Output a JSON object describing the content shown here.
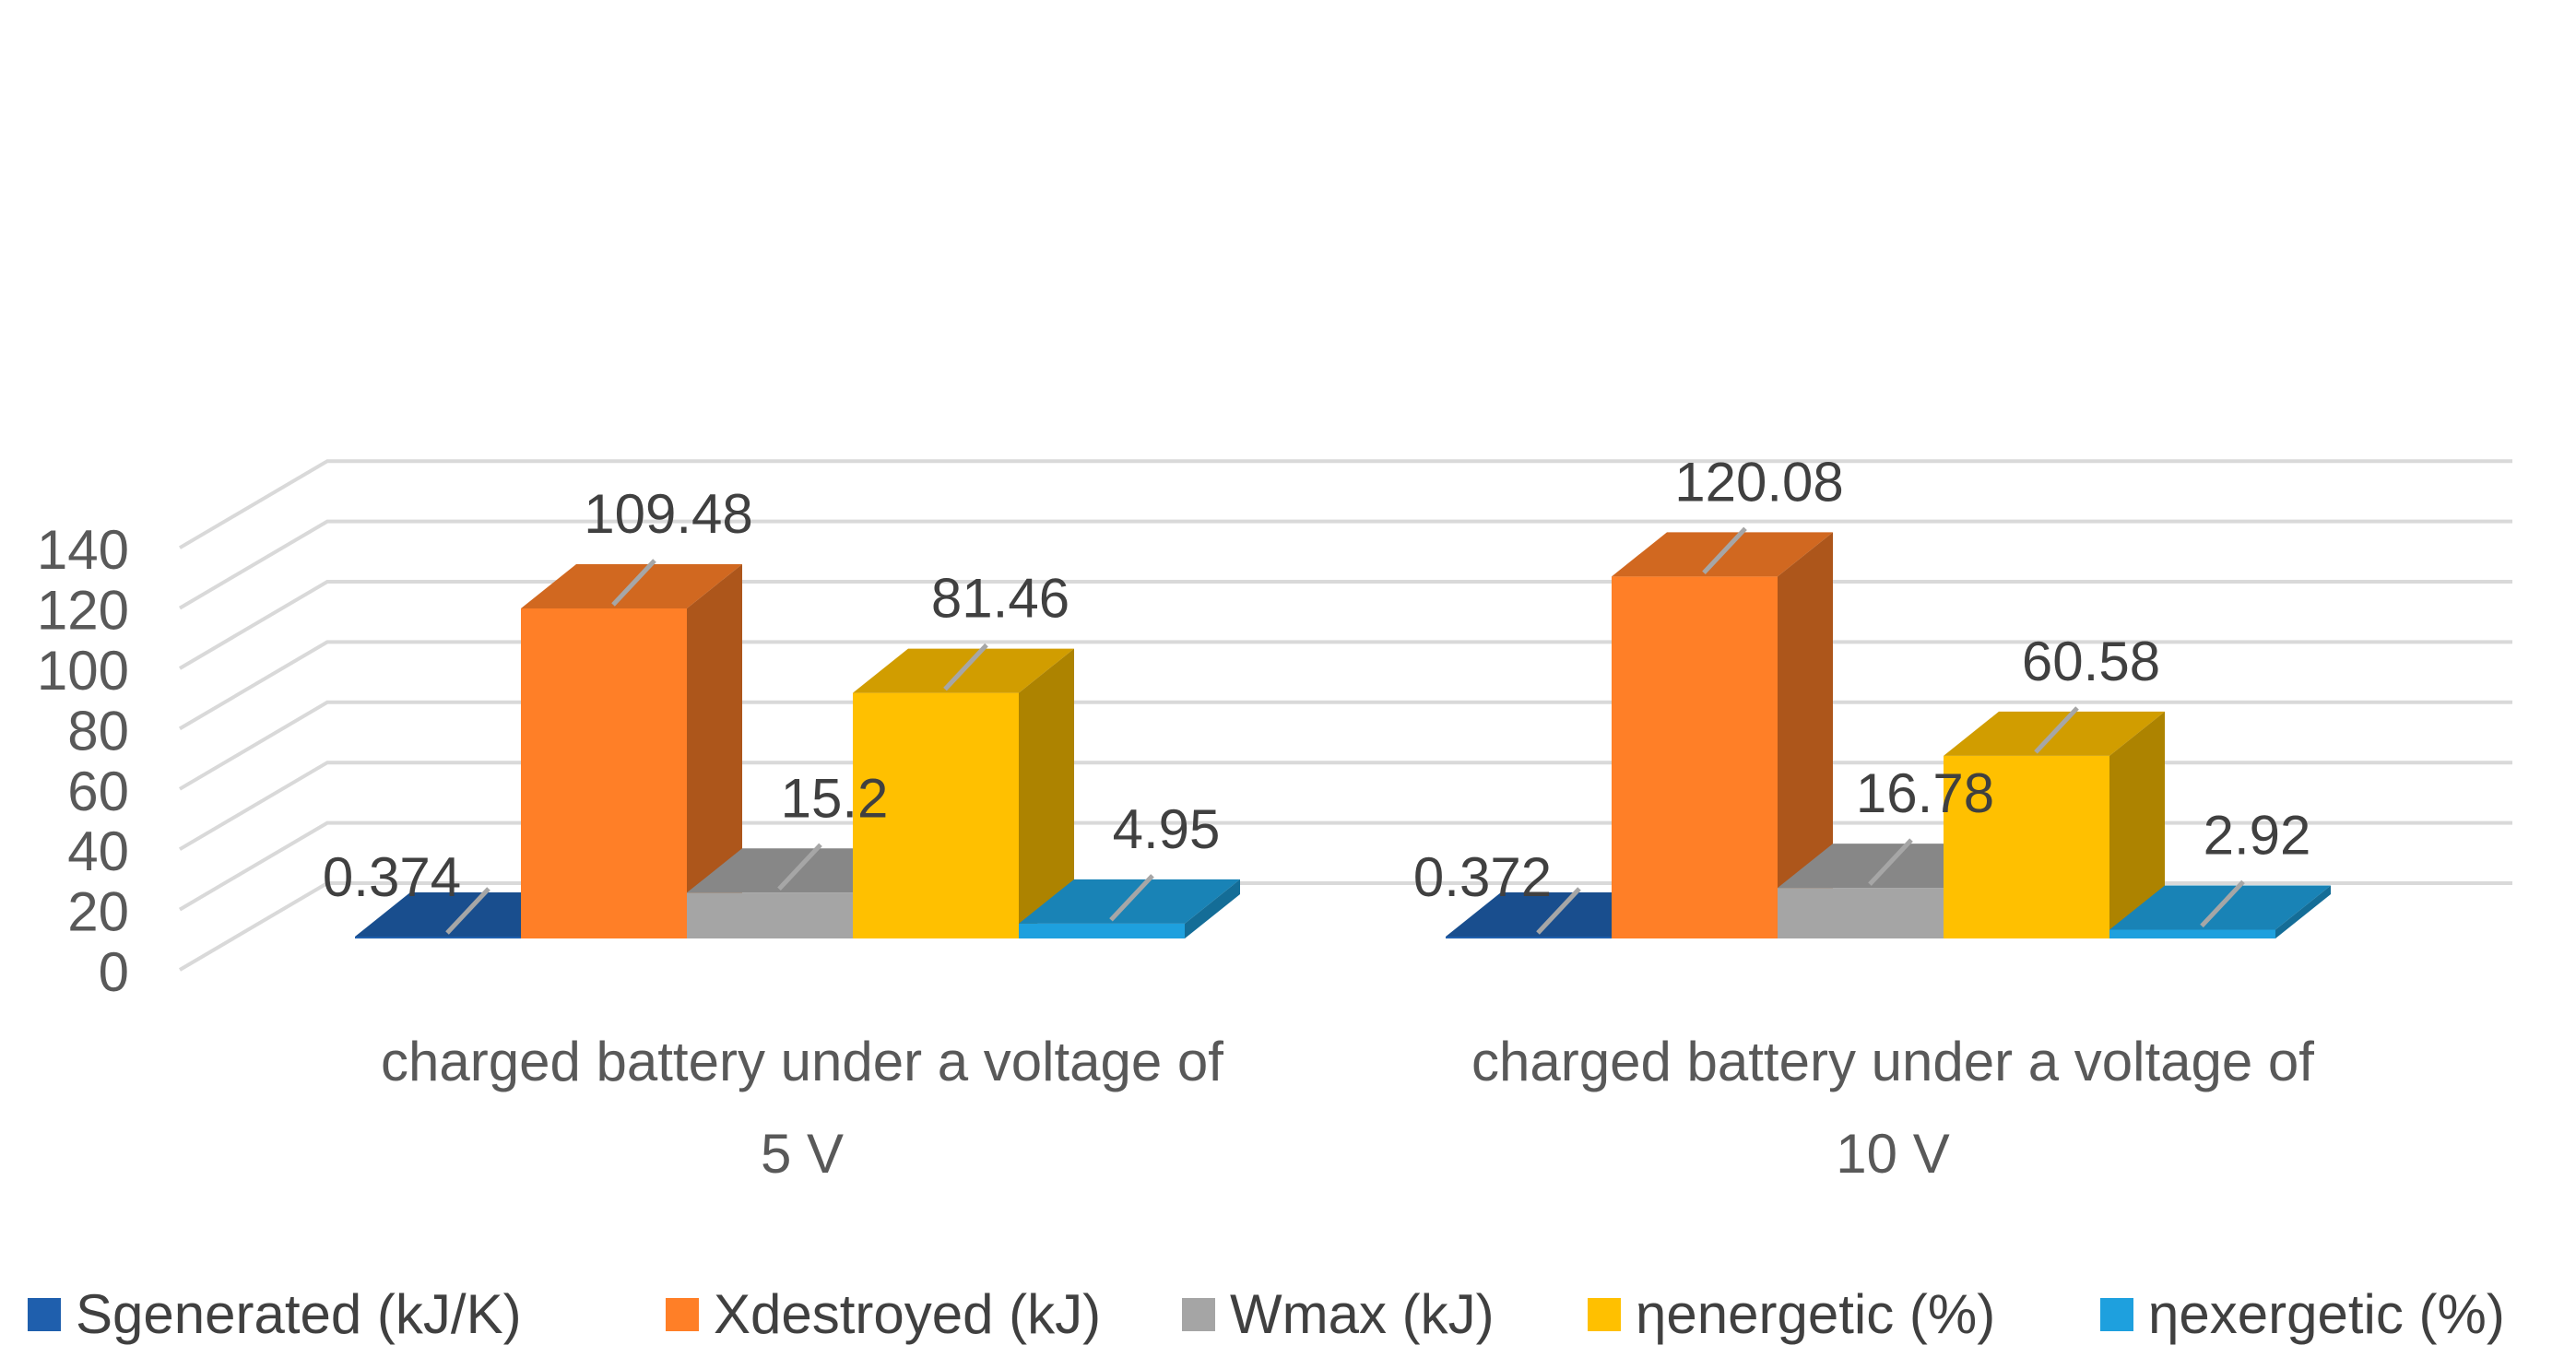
{
  "chart_data": {
    "type": "bar",
    "title": "",
    "xlabel": "",
    "ylabel": "",
    "ylim": [
      0,
      140
    ],
    "yticks": [
      0,
      20,
      40,
      60,
      80,
      100,
      120,
      140
    ],
    "grid": true,
    "three_d": true,
    "legend_position": "bottom",
    "categories": [
      [
        "charged battery under a voltage of",
        "5 V"
      ],
      [
        "charged battery under a voltage of",
        "10 V"
      ]
    ],
    "series": [
      {
        "name": "Sgenerated   (kJ/K)",
        "color": "#1f5fad",
        "values": [
          0.374,
          0.372
        ],
        "labels": [
          "0.374",
          "0.372"
        ]
      },
      {
        "name": "Xdestroyed   (kJ)",
        "color": "#ff7f27",
        "values": [
          109.48,
          120.08
        ],
        "labels": [
          "109.48",
          "120.08"
        ]
      },
      {
        "name": "Wmax   (kJ)",
        "color": "#a5a5a5",
        "values": [
          15.2,
          16.78
        ],
        "labels": [
          "15.2",
          "16.78"
        ]
      },
      {
        "name": "ηenergetic  (%)",
        "color": "#ffc000",
        "values": [
          81.46,
          60.58
        ],
        "labels": [
          "81.46",
          "60.58"
        ]
      },
      {
        "name": "ηexergetic  (%)",
        "color": "#1ea0de",
        "values": [
          4.95,
          2.92
        ],
        "labels": [
          "4.95",
          "2.92"
        ]
      }
    ]
  }
}
